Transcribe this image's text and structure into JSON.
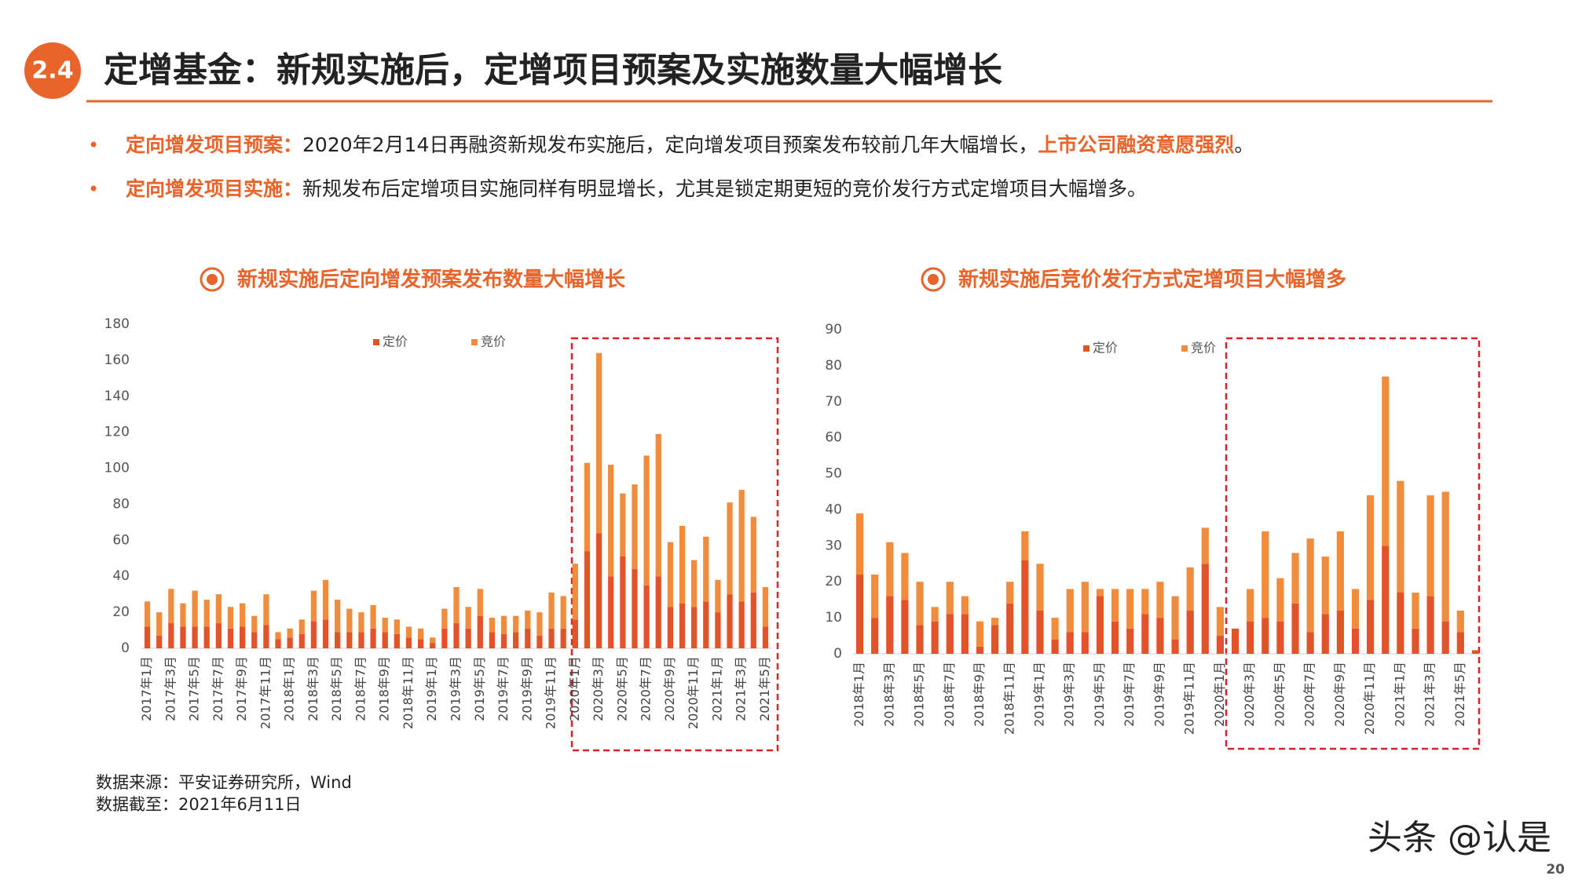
{
  "header": {
    "number": "2.4",
    "title": "定增基金：新规实施后，定增项目预案及实施数量大幅增长"
  },
  "bullets": [
    {
      "label": "定向增发项目预案：",
      "text": "2020年2月14日再融资新规发布实施后，定向增发项目预案发布较前几年大幅增长，",
      "highlight": "上市公司融资意愿强烈",
      "tail": "。"
    },
    {
      "label": "定向增发项目实施：",
      "text": "新规发布后定增项目实施同样有明显增长，尤其是锁定期更短的竞价发行方式定增项目大幅增多。"
    }
  ],
  "chart_data": [
    {
      "type": "bar",
      "stacked": true,
      "title": "新规实施后定向增发预案发布数量大幅增长",
      "legend": "top",
      "categories": [
        "2017年1月",
        null,
        "2017年3月",
        null,
        "2017年5月",
        null,
        "2017年7月",
        null,
        "2017年9月",
        null,
        "2017年11月",
        null,
        "2018年1月",
        null,
        "2018年3月",
        null,
        "2018年5月",
        null,
        "2018年7月",
        null,
        "2018年9月",
        null,
        "2018年11月",
        null,
        "2019年1月",
        null,
        "2019年3月",
        null,
        "2019年5月",
        null,
        "2019年7月",
        null,
        "2019年9月",
        null,
        "2019年11月",
        null,
        "2020年1月",
        null,
        "2020年3月",
        null,
        "2020年5月",
        null,
        "2020年7月",
        null,
        "2020年9月",
        null,
        "2020年11月",
        null,
        "2021年1月",
        null,
        "2021年3月",
        null,
        "2021年5月"
      ],
      "series": [
        {
          "name": "定价",
          "color": "#e2532a",
          "values": [
            12,
            7,
            14,
            12,
            12,
            12,
            14,
            11,
            12,
            9,
            13,
            5,
            6,
            8,
            15,
            16,
            9,
            9,
            9,
            11,
            9,
            8,
            6,
            5,
            3,
            11,
            14,
            11,
            18,
            9,
            8,
            9,
            11,
            7,
            11,
            11,
            16,
            54,
            64,
            40,
            51,
            44,
            35,
            40,
            23,
            25,
            23,
            26,
            20,
            30,
            26,
            31,
            12
          ]
        },
        {
          "name": "竞价",
          "color": "#f08c3c",
          "values": [
            14,
            13,
            19,
            13,
            20,
            15,
            16,
            12,
            13,
            9,
            17,
            4,
            5,
            8,
            17,
            22,
            18,
            13,
            11,
            13,
            8,
            8,
            6,
            6,
            3,
            11,
            20,
            12,
            15,
            8,
            10,
            9,
            10,
            13,
            20,
            18,
            31,
            49,
            100,
            62,
            35,
            47,
            72,
            79,
            36,
            43,
            26,
            36,
            18,
            51,
            62,
            42,
            22
          ]
        }
      ],
      "ylim": [
        0,
        180
      ],
      "yticks": [
        0,
        20,
        40,
        60,
        80,
        100,
        120,
        140,
        160,
        180
      ]
    },
    {
      "type": "bar",
      "stacked": true,
      "title": "新规实施后竞价发行方式定增项目大幅增多",
      "legend": "top",
      "categories": [
        "2018年1月",
        null,
        "2018年3月",
        null,
        "2018年5月",
        null,
        "2018年7月",
        null,
        "2018年9月",
        null,
        "2018年11月",
        null,
        "2019年1月",
        null,
        "2019年3月",
        null,
        "2019年5月",
        null,
        "2019年7月",
        null,
        "2019年9月",
        null,
        "2019年11月",
        null,
        "2020年1月",
        null,
        "2020年3月",
        null,
        "2020年5月",
        null,
        "2020年7月",
        null,
        "2020年9月",
        null,
        "2020年11月",
        null,
        "2021年1月",
        null,
        "2021年3月",
        null,
        "2021年5月",
        null
      ],
      "series": [
        {
          "name": "定价",
          "color": "#e2532a",
          "values": [
            22,
            10,
            16,
            15,
            8,
            9,
            11,
            11,
            2,
            8,
            14,
            26,
            12,
            4,
            6,
            6,
            16,
            9,
            7,
            11,
            10,
            4,
            12,
            25,
            5,
            7,
            9,
            10,
            9,
            14,
            6,
            11,
            12,
            7,
            15,
            30,
            17,
            7,
            16,
            9,
            6,
            1
          ]
        },
        {
          "name": "竞价",
          "color": "#f08c3c",
          "values": [
            17,
            12,
            15,
            13,
            12,
            4,
            9,
            5,
            7,
            2,
            6,
            8,
            13,
            6,
            12,
            14,
            2,
            9,
            11,
            7,
            10,
            12,
            12,
            10,
            8,
            0,
            9,
            24,
            12,
            14,
            26,
            16,
            22,
            11,
            29,
            47,
            31,
            10,
            28,
            36,
            6,
            0
          ]
        }
      ],
      "ylim": [
        0,
        90
      ],
      "yticks": [
        0,
        10,
        20,
        30,
        40,
        50,
        60,
        70,
        80,
        90
      ]
    }
  ],
  "sources": [
    "数据来源：平安证券研究所，Wind",
    "数据截至：2021年6月11日"
  ],
  "watermark": "头条 @认是",
  "page_number": "20"
}
